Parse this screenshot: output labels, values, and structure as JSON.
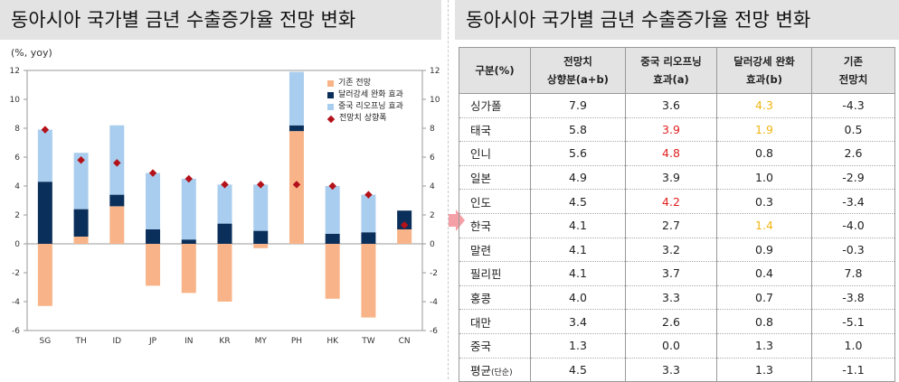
{
  "title_left": "동아시아 국가별 금년 수출증가율 전망 변화",
  "title_right": "동아시아 국가별 금년 수출증가율 전망 변화",
  "unit_label": "(%, yoy)",
  "colors": {
    "base": "#f8b488",
    "usd": "#0b2f5b",
    "china": "#a9cdee",
    "marker": "#b4121a",
    "red_text": "#e02020",
    "yellow_text": "#f1b613"
  },
  "chart_data": {
    "type": "bar",
    "categories": [
      "SG",
      "TH",
      "ID",
      "JP",
      "IN",
      "KR",
      "MY",
      "PH",
      "HK",
      "TW",
      "CN"
    ],
    "series": [
      {
        "name": "기존 전망",
        "values": [
          -4.3,
          0.5,
          2.6,
          -2.9,
          -3.4,
          -4.0,
          -0.3,
          7.8,
          -3.8,
          -5.1,
          1.0
        ]
      },
      {
        "name": "달러강세 완화 효과",
        "values": [
          4.3,
          1.9,
          0.8,
          1.0,
          0.3,
          1.4,
          0.9,
          0.4,
          0.7,
          0.8,
          1.3
        ]
      },
      {
        "name": "중국 리오프닝 효과",
        "values": [
          3.6,
          3.9,
          4.8,
          3.9,
          4.2,
          2.7,
          3.2,
          3.7,
          3.3,
          2.6,
          0.0
        ]
      },
      {
        "name": "전망치 상향폭",
        "values": [
          7.9,
          5.8,
          5.6,
          4.9,
          4.5,
          4.1,
          4.1,
          4.1,
          4.0,
          3.4,
          1.3
        ]
      }
    ],
    "ylim": [
      -6,
      12
    ],
    "yticks": [
      -6,
      -4,
      -2,
      0,
      2,
      4,
      6,
      8,
      10,
      12
    ],
    "grid": false,
    "legend_position": "top-right"
  },
  "table": {
    "headers": [
      {
        "line1": "구분(%)",
        "line2": ""
      },
      {
        "line1": "전망치",
        "line2": "상향분(a+b)"
      },
      {
        "line1": "중국 리오프닝",
        "line2": "효과(a)"
      },
      {
        "line1": "달러강세 완화",
        "line2": "효과(b)"
      },
      {
        "line1": "기존",
        "line2": "전망치"
      }
    ],
    "rows": [
      {
        "name": "싱가폴",
        "up": "7.9",
        "a": "3.6",
        "b": "4.3",
        "base": "-4.3",
        "hl_a": "",
        "hl_b": "yellow"
      },
      {
        "name": "태국",
        "up": "5.8",
        "a": "3.9",
        "b": "1.9",
        "base": "0.5",
        "hl_a": "red",
        "hl_b": "yellow"
      },
      {
        "name": "인니",
        "up": "5.6",
        "a": "4.8",
        "b": "0.8",
        "base": "2.6",
        "hl_a": "red",
        "hl_b": ""
      },
      {
        "name": "일본",
        "up": "4.9",
        "a": "3.9",
        "b": "1.0",
        "base": "-2.9",
        "hl_a": "",
        "hl_b": ""
      },
      {
        "name": "인도",
        "up": "4.5",
        "a": "4.2",
        "b": "0.3",
        "base": "-3.4",
        "hl_a": "red",
        "hl_b": ""
      },
      {
        "name": "한국",
        "up": "4.1",
        "a": "2.7",
        "b": "1.4",
        "base": "-4.0",
        "hl_a": "",
        "hl_b": "yellow"
      },
      {
        "name": "말련",
        "up": "4.1",
        "a": "3.2",
        "b": "0.9",
        "base": "-0.3",
        "hl_a": "",
        "hl_b": ""
      },
      {
        "name": "필리핀",
        "up": "4.1",
        "a": "3.7",
        "b": "0.4",
        "base": "7.8",
        "hl_a": "",
        "hl_b": ""
      },
      {
        "name": "홍콩",
        "up": "4.0",
        "a": "3.3",
        "b": "0.7",
        "base": "-3.8",
        "hl_a": "",
        "hl_b": ""
      },
      {
        "name": "대만",
        "up": "3.4",
        "a": "2.6",
        "b": "0.8",
        "base": "-5.1",
        "hl_a": "",
        "hl_b": ""
      },
      {
        "name": "중국",
        "up": "1.3",
        "a": "0.0",
        "b": "1.3",
        "base": "1.0",
        "hl_a": "",
        "hl_b": ""
      },
      {
        "name": "평균",
        "name_suffix": "(단순)",
        "up": "4.5",
        "a": "3.3",
        "b": "1.3",
        "base": "-1.1",
        "hl_a": "",
        "hl_b": ""
      }
    ]
  }
}
